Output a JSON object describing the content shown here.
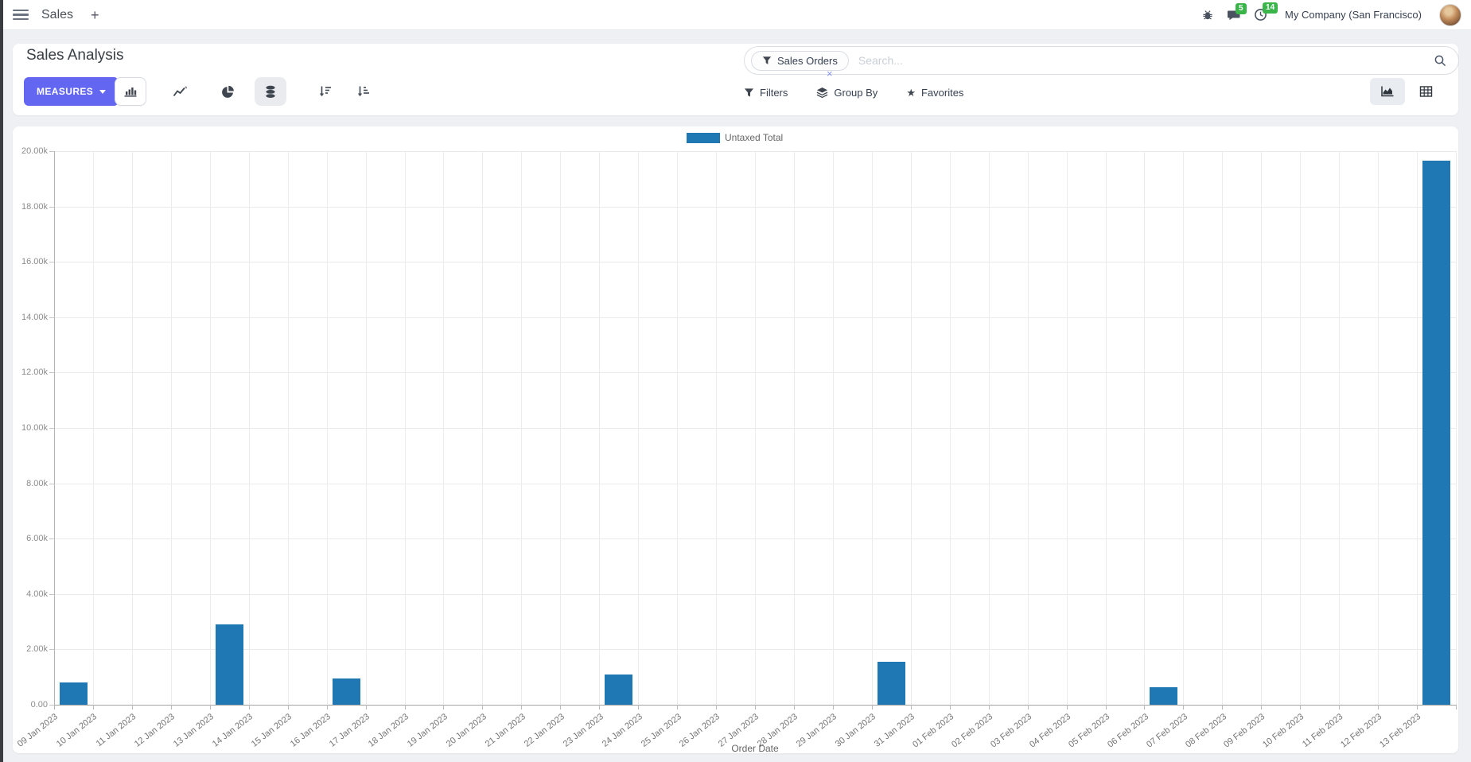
{
  "navbar": {
    "app_label": "Sales",
    "plus_label": "+",
    "messages_badge": "5",
    "activities_badge": "14",
    "company": "My Company (San Francisco)"
  },
  "control_panel": {
    "title": "Sales Analysis",
    "measures_label": "MEASURES",
    "filters_label": "Filters",
    "group_by_label": "Group By",
    "favorites_label": "Favorites",
    "star_glyph": "★"
  },
  "search": {
    "facet_label": "Sales Orders",
    "facet_remove_glyph": "×",
    "placeholder": "Search..."
  },
  "chart_data": {
    "type": "bar",
    "title": "",
    "xlabel": "Order Date",
    "ylabel": "",
    "legend_position": "top",
    "grid": true,
    "ylim": [
      0,
      20000
    ],
    "ytick_step": 2000,
    "ytick_labels": [
      "0.00",
      "2.00k",
      "4.00k",
      "6.00k",
      "8.00k",
      "10.00k",
      "12.00k",
      "14.00k",
      "16.00k",
      "18.00k",
      "20.00k"
    ],
    "categories": [
      "09 Jan 2023",
      "10 Jan 2023",
      "11 Jan 2023",
      "12 Jan 2023",
      "13 Jan 2023",
      "14 Jan 2023",
      "15 Jan 2023",
      "16 Jan 2023",
      "17 Jan 2023",
      "18 Jan 2023",
      "19 Jan 2023",
      "20 Jan 2023",
      "21 Jan 2023",
      "22 Jan 2023",
      "23 Jan 2023",
      "24 Jan 2023",
      "25 Jan 2023",
      "26 Jan 2023",
      "27 Jan 2023",
      "28 Jan 2023",
      "29 Jan 2023",
      "30 Jan 2023",
      "31 Jan 2023",
      "01 Feb 2023",
      "02 Feb 2023",
      "03 Feb 2023",
      "04 Feb 2023",
      "05 Feb 2023",
      "06 Feb 2023",
      "07 Feb 2023",
      "08 Feb 2023",
      "09 Feb 2023",
      "10 Feb 2023",
      "11 Feb 2023",
      "12 Feb 2023",
      "13 Feb 2023"
    ],
    "series": [
      {
        "name": "Untaxed Total",
        "color": "#1f77b4",
        "values": [
          800,
          0,
          0,
          0,
          2900,
          0,
          0,
          950,
          0,
          0,
          0,
          0,
          0,
          0,
          1100,
          0,
          0,
          0,
          0,
          0,
          0,
          1550,
          0,
          0,
          0,
          0,
          0,
          0,
          630,
          0,
          0,
          0,
          0,
          0,
          0,
          19650
        ]
      }
    ]
  }
}
